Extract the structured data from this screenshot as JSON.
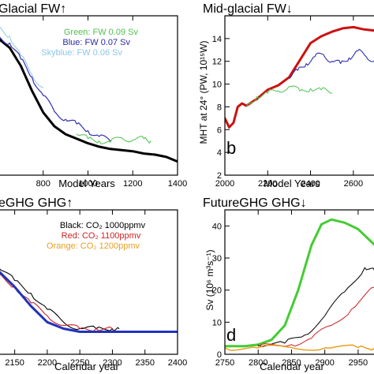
{
  "chart_data": [
    {
      "panel": "top-left",
      "type": "line",
      "title": "Glacial FW↑",
      "xlabel": "Model Years",
      "ylabel": "",
      "xlim": [
        600,
        1400
      ],
      "ylim": [
        2,
        16
      ],
      "xticks": [
        800,
        1000,
        1200,
        1400
      ],
      "xtick_labels": [
        "800",
        "1000",
        "1200",
        "1400"
      ],
      "legend": [
        "Green: FW 0.09 Sv",
        "Blue: FW 0.07 Sv",
        "Skyblue: FW 0.06 Sv"
      ],
      "series": [
        {
          "color": "#000000",
          "x": [
            600,
            650,
            700,
            750,
            800,
            850,
            900,
            950,
            1000,
            1050,
            1100,
            1150,
            1200,
            1250,
            1300,
            1350,
            1400
          ],
          "y": [
            14.0,
            13.2,
            11.6,
            9.4,
            7.5,
            6.3,
            5.6,
            5.2,
            4.8,
            4.5,
            4.3,
            4.2,
            4.1,
            3.9,
            3.8,
            3.6,
            3.2
          ]
        },
        {
          "color": "#3030b0",
          "x": [
            600,
            650,
            700,
            750,
            800,
            850,
            900,
            950,
            1000,
            1050,
            1100
          ],
          "y": [
            14.2,
            13.6,
            12.2,
            10.6,
            9.0,
            7.6,
            6.9,
            6.5,
            5.9,
            5.4,
            5.0
          ]
        },
        {
          "color": "#5ac85a",
          "x": [
            950,
            1000,
            1050,
            1100,
            1150,
            1200,
            1250,
            1280
          ],
          "y": [
            5.6,
            5.2,
            5.0,
            4.9,
            5.3,
            5.1,
            5.2,
            5.0
          ]
        },
        {
          "color": "#9ccde8",
          "x": [
            600,
            650,
            700,
            750,
            800
          ],
          "y": [
            15.0,
            14.2,
            12.5,
            10.8,
            9.7
          ]
        }
      ]
    },
    {
      "panel": "top-right",
      "type": "line",
      "title": "Mid-glacial FW↓",
      "panel_label": "b",
      "xlabel": "Model Years",
      "ylabel": "MHT at 24° (PW, 10¹⁵W)",
      "xlim": [
        2000,
        2700
      ],
      "ylim": [
        2,
        16
      ],
      "xticks": [
        2000,
        2200,
        2400,
        2600
      ],
      "xtick_labels": [
        "2000",
        "2200",
        "2400",
        "2600"
      ],
      "yticks": [
        2,
        4,
        6,
        8,
        10,
        12,
        14
      ],
      "ytick_labels": [
        "2",
        "4",
        "6",
        "8",
        "10",
        "12",
        "14"
      ],
      "series": [
        {
          "color": "#cc1111",
          "x": [
            2000,
            2020,
            2040,
            2060,
            2080,
            2100,
            2150,
            2200,
            2250,
            2300,
            2350,
            2400,
            2450,
            2500,
            2550,
            2600,
            2650,
            2700
          ],
          "y": [
            7.0,
            6.2,
            6.6,
            8.0,
            8.3,
            8.1,
            8.7,
            9.5,
            9.9,
            10.6,
            12.1,
            13.6,
            14.2,
            14.6,
            14.9,
            15.0,
            14.8,
            14.7
          ]
        },
        {
          "color": "#3030b0",
          "x": [
            2300,
            2340,
            2380,
            2420,
            2460,
            2500,
            2540,
            2580,
            2620,
            2660,
            2700
          ],
          "y": [
            10.5,
            11.2,
            11.8,
            12.4,
            12.6,
            12.0,
            11.8,
            12.3,
            12.9,
            12.4,
            12.1
          ]
        },
        {
          "color": "#5ac85a",
          "x": [
            2100,
            2150,
            2200,
            2250,
            2300,
            2350,
            2400,
            2450,
            2500
          ],
          "y": [
            8.0,
            8.9,
            9.2,
            9.4,
            9.8,
            9.4,
            9.6,
            9.5,
            9.2
          ]
        }
      ]
    },
    {
      "panel": "bottom-left",
      "type": "line",
      "title": "eGHG GHG↑",
      "xlabel": "Calendar year",
      "ylabel": "",
      "xlim": [
        2125,
        2400
      ],
      "ylim": [
        0,
        45
      ],
      "xticks": [
        2150,
        2200,
        2250,
        2300,
        2350,
        2400
      ],
      "xtick_labels": [
        "2150",
        "2200",
        "2250",
        "2300",
        "2350",
        "2400"
      ],
      "legend": [
        "Black: CO₂ 1000ppmv",
        "Red: CO₂ 1100ppmv",
        "Orange: CO₂ 1200ppmv"
      ],
      "series": [
        {
          "color": "#000000",
          "x": [
            2125,
            2150,
            2175,
            2200,
            2225,
            2250,
            2275,
            2300,
            2310
          ],
          "y": [
            27,
            23,
            19,
            14,
            10,
            8,
            8,
            8,
            8
          ]
        },
        {
          "color": "#cc2222",
          "x": [
            2125,
            2150,
            2175,
            2200,
            2225,
            2250,
            2275,
            2300
          ],
          "y": [
            25,
            21,
            16,
            12,
            9,
            8,
            8,
            8
          ]
        },
        {
          "color": "#2233bb",
          "x": [
            2125,
            2150,
            2175,
            2200,
            2225,
            2250,
            2275,
            2300,
            2325,
            2350,
            2375,
            2400
          ],
          "y": [
            26,
            21,
            15,
            10,
            8,
            7,
            7,
            7,
            7,
            7,
            7,
            7
          ]
        }
      ]
    },
    {
      "panel": "bottom-right",
      "type": "line",
      "title": "FutureGHG GHG↓",
      "panel_label": "d",
      "xlabel": "Calendar year",
      "ylabel": "Sv (10⁶ m³s⁻¹)",
      "xlim": [
        2750,
        2975
      ],
      "ylim": [
        0,
        45
      ],
      "xticks": [
        2750,
        2800,
        2850,
        2900,
        2950
      ],
      "xtick_labels": [
        "2750",
        "2800",
        "2850",
        "2900",
        "2950"
      ],
      "yticks": [
        0,
        10,
        20,
        30,
        40
      ],
      "ytick_labels": [
        "0",
        "10",
        "20",
        "30",
        "40"
      ],
      "series": [
        {
          "color": "#44cc33",
          "x": [
            2750,
            2780,
            2800,
            2820,
            2840,
            2860,
            2880,
            2895,
            2910,
            2930,
            2950,
            2975
          ],
          "y": [
            2.5,
            2.5,
            3.0,
            4.5,
            9.0,
            20.0,
            34.0,
            40.5,
            42.0,
            41.0,
            39.0,
            34.0
          ]
        },
        {
          "color": "#111111",
          "x": [
            2800,
            2840,
            2870,
            2900,
            2930,
            2960,
            2975
          ],
          "y": [
            2.8,
            3.5,
            6.0,
            12.0,
            19.5,
            27.0,
            26.0
          ]
        },
        {
          "color": "#cc3333",
          "x": [
            2800,
            2850,
            2880,
            2910,
            2940,
            2975
          ],
          "y": [
            2.5,
            3.0,
            5.0,
            9.0,
            14.0,
            21.0
          ]
        },
        {
          "color": "#e8a020",
          "x": [
            2750,
            2800,
            2850,
            2900,
            2950,
            2975
          ],
          "y": [
            2.0,
            2.0,
            2.1,
            2.0,
            2.1,
            2.0
          ]
        }
      ]
    }
  ]
}
